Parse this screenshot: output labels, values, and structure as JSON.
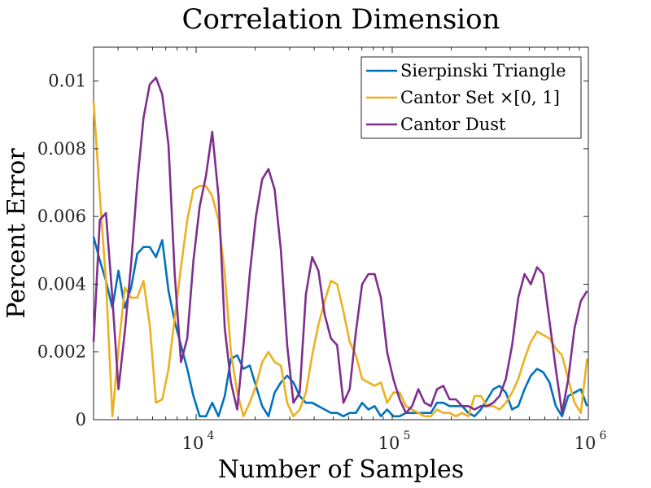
{
  "chart_data": {
    "type": "line",
    "title": "Correlation Dimension",
    "xlabel": "Number of Samples",
    "ylabel": "Percent Error",
    "xscale": "log",
    "xlim": [
      3000,
      1000000
    ],
    "ylim": [
      0,
      0.011
    ],
    "grid": false,
    "legend_position": "top-right",
    "xticks": [
      {
        "value": 10000,
        "base": "10",
        "exp": "4"
      },
      {
        "value": 100000,
        "base": "10",
        "exp": "5"
      },
      {
        "value": 1000000,
        "base": "10",
        "exp": "6"
      }
    ],
    "yticks": [
      {
        "value": 0,
        "label": "0"
      },
      {
        "value": 0.002,
        "label": "0.002"
      },
      {
        "value": 0.004,
        "label": "0.004"
      },
      {
        "value": 0.006,
        "label": "0.006"
      },
      {
        "value": 0.008,
        "label": "0.008"
      },
      {
        "value": 0.01,
        "label": "0.01"
      }
    ],
    "x": [
      3000,
      3230,
      3470,
      3740,
      4020,
      4330,
      4660,
      5010,
      5390,
      5800,
      6240,
      6720,
      7230,
      7780,
      8370,
      9010,
      9690,
      10430,
      11220,
      12080,
      13000,
      13990,
      15050,
      16200,
      17430,
      18760,
      20190,
      21720,
      23380,
      25150,
      27070,
      29130,
      31350,
      33730,
      36300,
      39060,
      42040,
      45240,
      48680,
      52380,
      56370,
      60660,
      65270,
      70240,
      75590,
      81340,
      87530,
      94190,
      101360,
      109070,
      117360,
      126300,
      135900,
      146250,
      157380,
      169360,
      182250,
      196120,
      211040,
      227100,
      244380,
      262980,
      282990,
      304530,
      327700,
      352640,
      379480,
      408360,
      439430,
      472870,
      508860,
      547580,
      589250,
      634100,
      682350,
      734280,
      790160,
      850290,
      915000,
      984630
    ],
    "series": [
      {
        "name": "Sierpinski Triangle",
        "color": "#0072BD",
        "values": [
          0.0054,
          0.0047,
          0.0041,
          0.0033,
          0.0044,
          0.0033,
          0.0039,
          0.0049,
          0.0051,
          0.0051,
          0.0048,
          0.0053,
          0.0038,
          0.0029,
          0.0022,
          0.0015,
          0.0007,
          0.0001,
          0.0001,
          0.0005,
          0.0001,
          0.0007,
          0.0018,
          0.0019,
          0.0015,
          0.0016,
          0.001,
          0.0004,
          0.0001,
          0.0008,
          0.0011,
          0.0013,
          0.0011,
          0.0007,
          0.0005,
          0.0005,
          0.0004,
          0.0003,
          0.0002,
          0.0002,
          0.0001,
          0.0002,
          0.0002,
          0.0005,
          0.0003,
          0.0004,
          0.0001,
          0.0003,
          0.0001,
          0.0001,
          0.0002,
          0.0002,
          0.0002,
          0.0002,
          0.0002,
          0.0005,
          0.0005,
          0.0004,
          0.0004,
          0.0004,
          0.0002,
          0.0001,
          0.0003,
          0.0006,
          0.0009,
          0.001,
          0.0008,
          0.0003,
          0.0004,
          0.0009,
          0.0013,
          0.0015,
          0.0014,
          0.0011,
          0.0004,
          0.0001,
          0.0007,
          0.0008,
          0.0009,
          0.0004
        ]
      },
      {
        "name": "Cantor Set ×[0, 1]",
        "color": "#EDB120",
        "values": [
          0.0094,
          0.0066,
          0.0041,
          0.0001,
          0.0021,
          0.0039,
          0.0036,
          0.0036,
          0.0041,
          0.0028,
          0.0005,
          0.0006,
          0.0015,
          0.003,
          0.0045,
          0.0059,
          0.0068,
          0.0069,
          0.0069,
          0.0066,
          0.0059,
          0.0043,
          0.002,
          0.0008,
          0.0001,
          0.0005,
          0.001,
          0.0017,
          0.002,
          0.0017,
          0.0016,
          0.0005,
          0.0001,
          0.0003,
          0.0008,
          0.0019,
          0.0028,
          0.0035,
          0.0041,
          0.004,
          0.0032,
          0.0023,
          0.0019,
          0.0012,
          0.0011,
          0.001,
          0.0011,
          0.0005,
          0.0008,
          0.0008,
          0.0004,
          0.0003,
          0.0002,
          0.0001,
          0.0001,
          0.0003,
          0.0002,
          0.0002,
          0.0001,
          0.0002,
          0.0001,
          0.0007,
          0.0007,
          0.0004,
          0.0004,
          0.0003,
          0.0005,
          0.0008,
          0.0012,
          0.0018,
          0.0023,
          0.0026,
          0.0025,
          0.0024,
          0.0021,
          0.0019,
          0.0012,
          0.0005,
          0.0002,
          0.0018
        ]
      },
      {
        "name": "Cantor Dust",
        "color": "#7E2F8E",
        "values": [
          0.0023,
          0.0059,
          0.0061,
          0.0036,
          0.0009,
          0.0026,
          0.0046,
          0.007,
          0.0089,
          0.0099,
          0.0101,
          0.0096,
          0.0081,
          0.0043,
          0.0017,
          0.0024,
          0.0047,
          0.0063,
          0.0072,
          0.0085,
          0.0066,
          0.0027,
          0.0011,
          0.0003,
          0.0022,
          0.0043,
          0.006,
          0.0071,
          0.0074,
          0.0068,
          0.005,
          0.0022,
          0.0005,
          0.0008,
          0.0037,
          0.0048,
          0.0044,
          0.0031,
          0.0024,
          0.0022,
          0.0005,
          0.0009,
          0.0026,
          0.004,
          0.0043,
          0.0043,
          0.0036,
          0.002,
          0.0012,
          0.0006,
          0.0002,
          0.0004,
          0.0009,
          0.0005,
          0.0004,
          0.0009,
          0.001,
          0.0006,
          0.0006,
          0.0004,
          0.0004,
          0.0003,
          0.0004,
          0.0004,
          0.0005,
          0.0007,
          0.0012,
          0.0022,
          0.0036,
          0.0043,
          0.004,
          0.0045,
          0.0043,
          0.0029,
          0.0015,
          0.0002,
          0.0012,
          0.0027,
          0.0035,
          0.0038
        ]
      }
    ]
  }
}
